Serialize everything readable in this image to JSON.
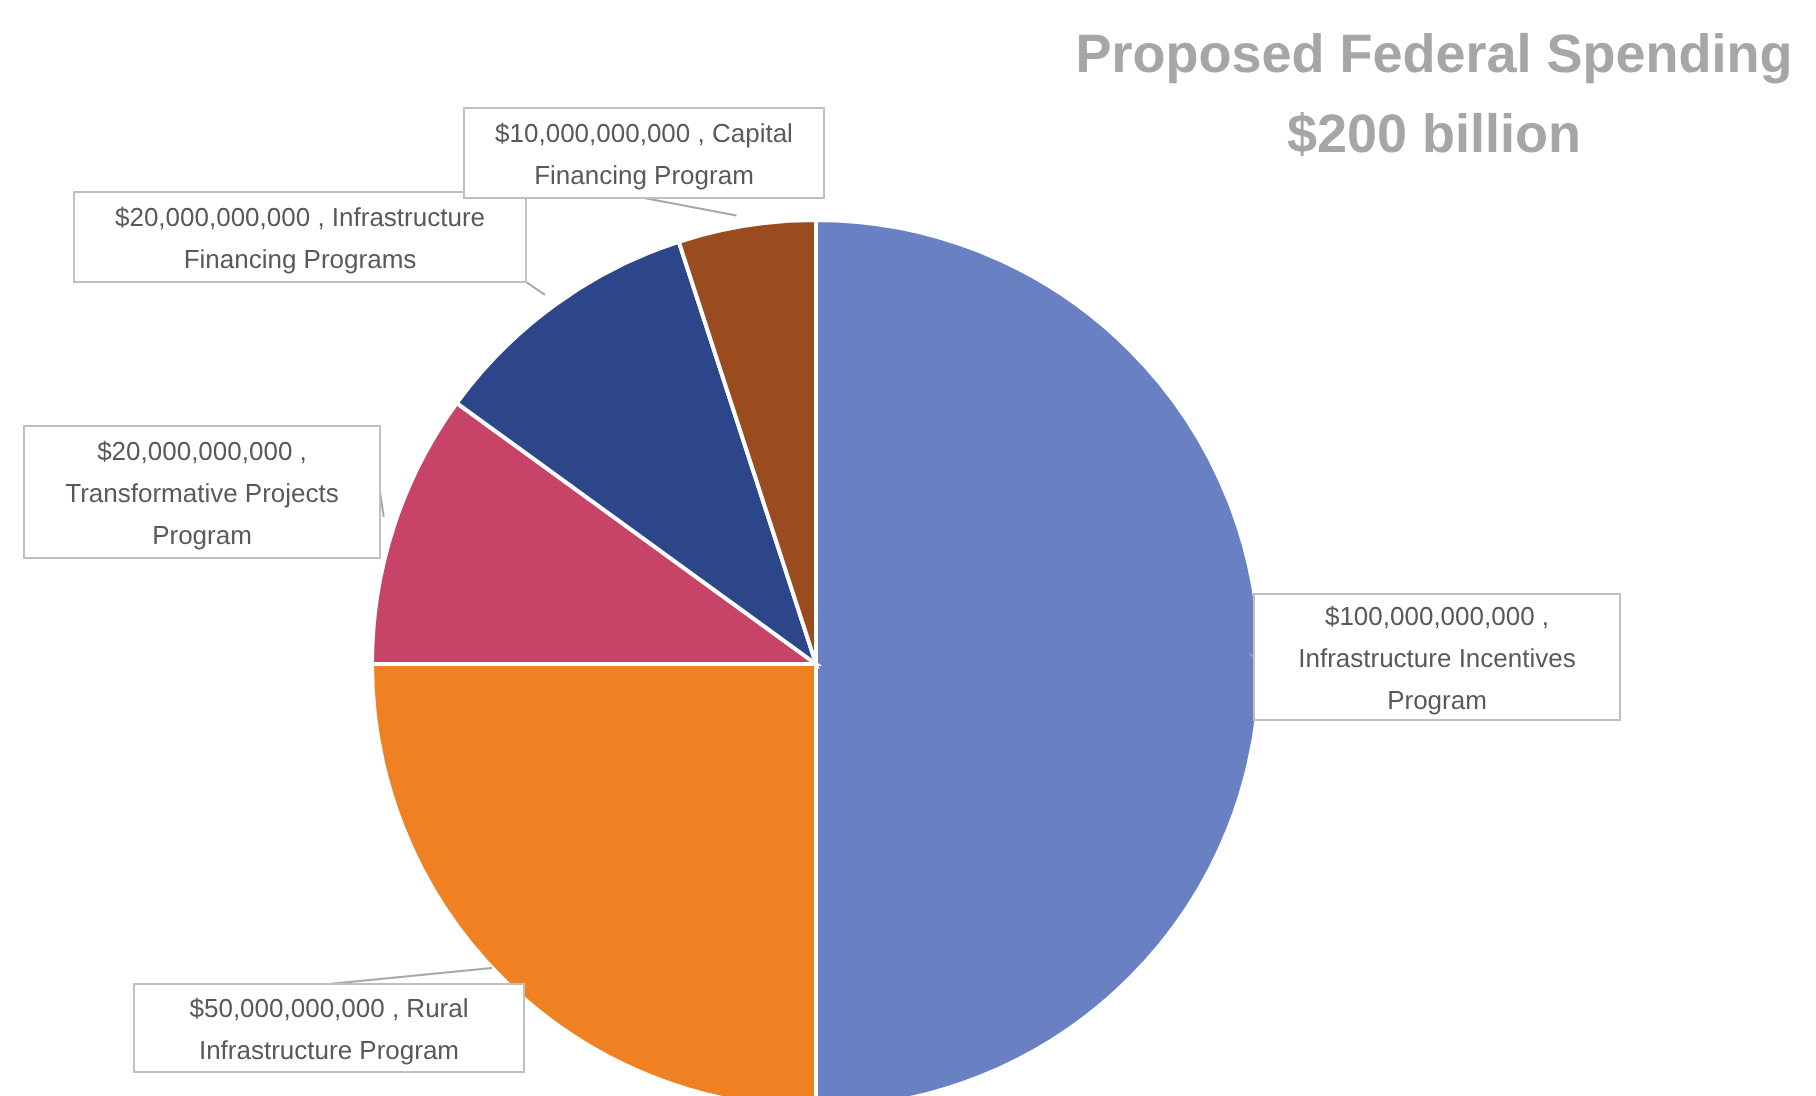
{
  "chart_data": {
    "type": "pie",
    "title": "Proposed Federal Spending",
    "subtitle": "$200 billion",
    "categories": [
      "Infrastructure Incentives Program",
      "Rural Infrastructure Program",
      "Transformative Projects Program",
      "Infrastructure Financing Programs",
      "Capital Financing Program"
    ],
    "values": [
      100000000000,
      50000000000,
      20000000000,
      20000000000,
      10000000000
    ],
    "value_labels": [
      "$100,000,000,000 ,",
      "$50,000,000,000 ,",
      "$20,000,000,000 ,",
      "$20,000,000,000 ,",
      "$10,000,000,000 ,"
    ],
    "colors": [
      "#6980c2",
      "#ef8122",
      "#c84368",
      "#2d4689",
      "#9a4b20"
    ],
    "legend": false
  }
}
